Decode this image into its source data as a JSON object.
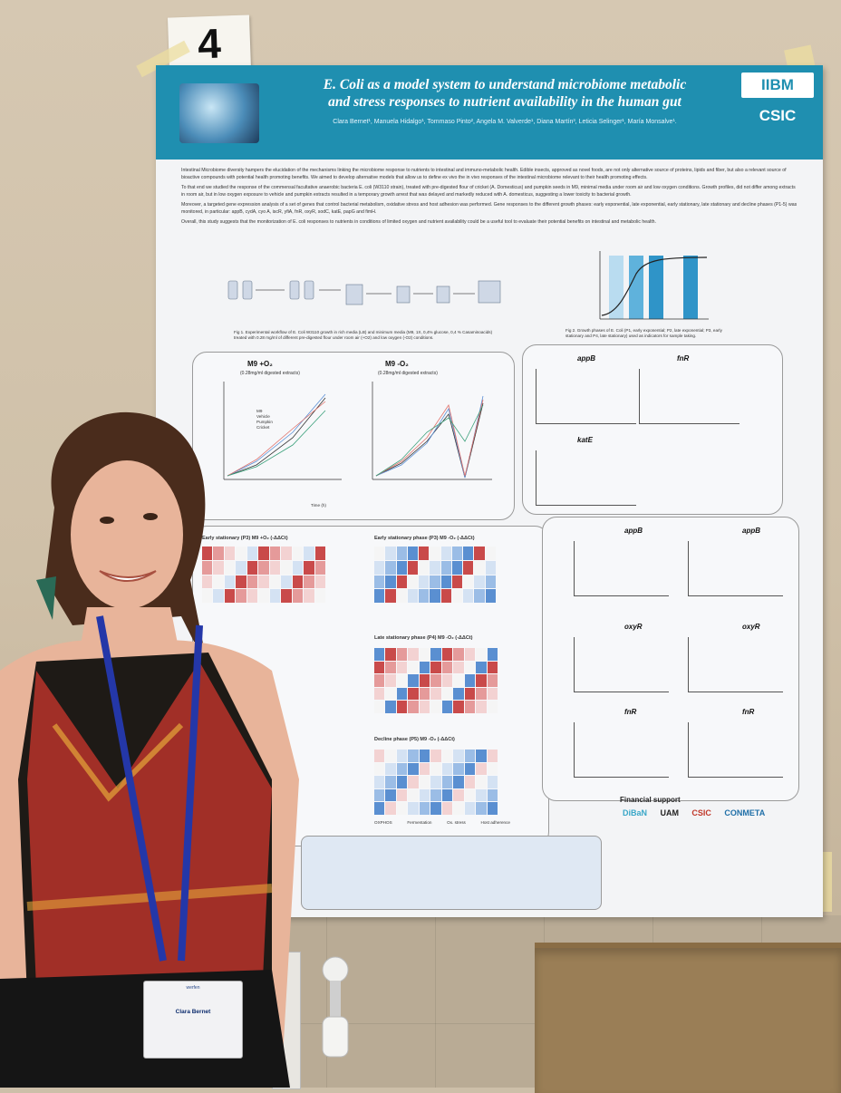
{
  "scene": {
    "card_number": "4"
  },
  "poster": {
    "title_line1": "E. Coli as a model system to understand microbiome metabolic",
    "title_line2": "and stress responses to nutrient availability in the human gut",
    "authors": "Clara Bernet¹, Manuela Hidalgo¹, Tommaso Pinto², Angela M. Valverde¹, Diana Martín³, Leticia Selinger¹, María Monsalve¹.",
    "logo_ibm": "IIBM",
    "logo_csic": "CSIC",
    "abstract": [
      "Intestinal Microbiome diversity hampers the elucidation of the mechanisms linking the microbiome response to nutrients to intestinal and immuno-metabolic health. Edible insects, approved as novel foods, are not only alternative source of proteins, lipids and fiber, but also a relevant source of bioactive compounds with potential health promoting benefits. We aimed to develop alternative models that allow us to define ex vivo the in vivo responses of the intestinal microbiome relevant to their health promoting effects.",
      "To that end we studied the response of the commensal facultative anaerobic bacteria E. coli (W3110 strain), treated with pre-digested flour of cricket (A. Domesticus) and pumpkin seeds in M9, minimal media under room air and low oxygen conditions. Growth profiles, did not differ among extracts in room air, but in low oxygen exposure to vehicle and pumpkin extracts resulted in a temporary growth arrest that was delayed and markedly reduced with A. domesticus, suggesting a lower toxicity to bacterial growth.",
      "Moreover, a targeted gene expression analysis of a set of genes that control bacterial metabolism, oxidative stress and host adhesion was performed. Gene responses to the different growth phases: early exponential, late exponential, early stationary, late stationary and decline phases (P1-5) was monitored, in particular: appB, cydA, cyo A, iscR, yfiA, fnR, oxyR, sodC, katE, papG and fimH.",
      "Overall, this study suggests that the monitorization of E. coli responses to nutrients in conditions of limited oxygen and nutrient availability could be a useful tool to evaluate their potential benefits on intestinal and metabolic health."
    ],
    "fig1_caption": "Fig 1. Experimental workflow of E. Coli W3110 growth in rich media (LB) and minimum media (M9, 1X, 0,4% glucose, 0,4 % Casaminoacids) treated with 0.28 mg/ml of different pre-digested flour under room air (+O2) and low oxygen (-O2) conditions.",
    "fig2_caption": "Fig 2. Growth phases of E. Coli (P1, early exponential; P2, late exponential; P3, early stationary and P4, late stationary) used as indicators for sample taking.",
    "fig3_title_a": "M9 +O₂",
    "fig3_sub_a": "(0.28mg/ml digested extracts)",
    "fig3_title_b": "M9 -O₂",
    "fig3_sub_b": "(0.28mg/ml digested extracts)",
    "fig3_legend": [
      "M9",
      "Vehicle",
      "Pumpkin",
      "Cricket"
    ],
    "fig3_xlabel": "Time (h)",
    "fig3_ylabel": "OD (600 nm)",
    "fig4_titles": [
      "appB",
      "fnR",
      "katE"
    ],
    "heat_titles": [
      "Early stationary (P3) M9 +O₂ (-ΔΔCt)",
      "Early stationary phase (P3) M9 -O₂ (-ΔΔCt)",
      "Late stationary phase (P4) M9 -O₂ (-ΔΔCt)",
      "Decline phase (P5) M9 -O₂ (-ΔΔCt)"
    ],
    "heat_groups": [
      "OXPHOS",
      "Fermentation",
      "Ox. stress",
      "Host adherence"
    ],
    "fig5_titles": [
      "appB",
      "appB",
      "oxyR",
      "oxyR",
      "fnR",
      "fnR"
    ],
    "financial_title": "Financial support",
    "funders": [
      "DiBaN",
      "UAM",
      "CSIC",
      "CONMETA"
    ]
  },
  "badge": {
    "name": "Clara Bernet",
    "lanyard": "werfen"
  },
  "colors": {
    "banner": "#1f8fb0",
    "wall": "#d6c8b2"
  }
}
